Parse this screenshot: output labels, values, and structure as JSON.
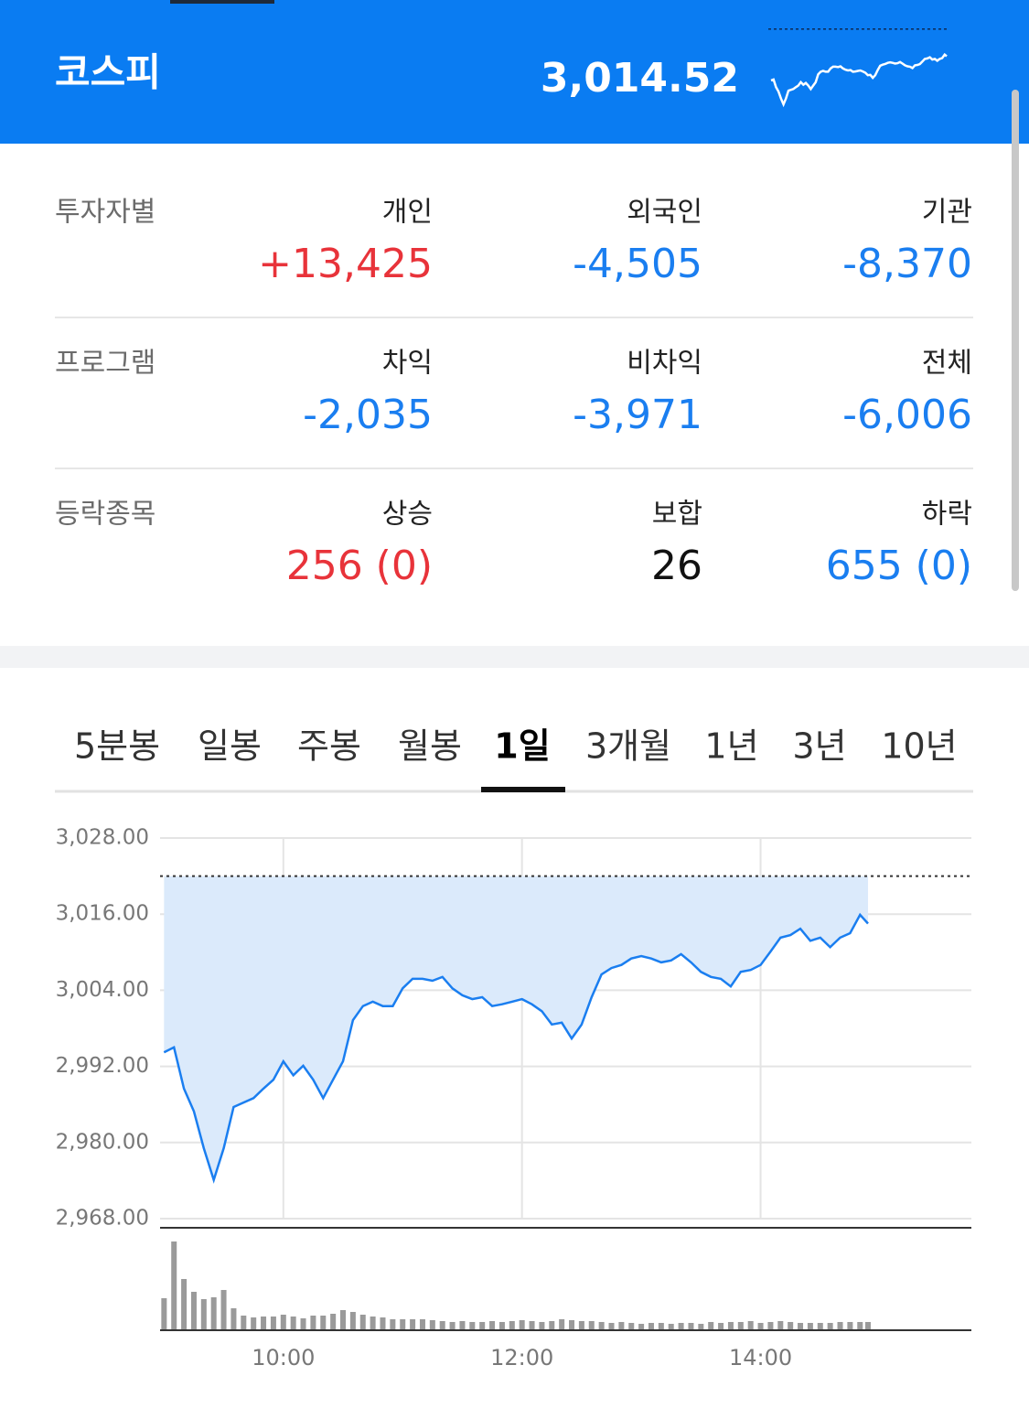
{
  "header": {
    "title": "코스피",
    "value": "3,014.52"
  },
  "investors": {
    "rows": [
      {
        "label": "투자자별",
        "cells": [
          {
            "label": "개인",
            "value": "+13,425",
            "color": "#e8333a"
          },
          {
            "label": "외국인",
            "value": "-4,505",
            "color": "#1a7ef0"
          },
          {
            "label": "기관",
            "value": "-8,370",
            "color": "#1a7ef0"
          }
        ]
      },
      {
        "label": "프로그램",
        "cells": [
          {
            "label": "차익",
            "value": "-2,035",
            "color": "#1a7ef0"
          },
          {
            "label": "비차익",
            "value": "-3,971",
            "color": "#1a7ef0"
          },
          {
            "label": "전체",
            "value": "-6,006",
            "color": "#1a7ef0"
          }
        ]
      },
      {
        "label": "등락종목",
        "cells": [
          {
            "label": "상승",
            "value": "256 (0)",
            "color": "#e8333a"
          },
          {
            "label": "보합",
            "value": "26",
            "color": "#111111"
          },
          {
            "label": "하락",
            "value": "655 (0)",
            "color": "#1a7ef0"
          }
        ]
      }
    ]
  },
  "tabs": {
    "items": [
      "5분봉",
      "일봉",
      "주봉",
      "월봉",
      "1일",
      "3개월",
      "1년",
      "3년",
      "10년"
    ],
    "selected": 4
  },
  "chart_data": {
    "type": "line",
    "x": [
      540,
      545,
      550,
      555,
      560,
      565,
      570,
      575,
      580,
      585,
      590,
      595,
      600,
      605,
      610,
      615,
      620,
      625,
      630,
      635,
      640,
      645,
      650,
      655,
      660,
      665,
      670,
      675,
      680,
      685,
      690,
      695,
      700,
      705,
      710,
      715,
      720,
      725,
      730,
      735,
      740,
      745,
      750,
      755,
      760,
      765,
      770,
      775,
      780,
      785,
      790,
      795,
      800,
      805,
      810,
      815,
      820,
      825,
      830,
      835,
      840,
      845,
      850,
      855,
      860,
      865,
      870,
      875,
      880,
      885,
      890,
      894
    ],
    "values": [
      2994.2,
      2995,
      2988.5,
      2984.9,
      2979.1,
      2974.1,
      2979.1,
      2985.6,
      2986.3,
      2987,
      2988.5,
      2989.9,
      2992.8,
      2990.6,
      2992.1,
      2989.9,
      2987,
      2989.9,
      2992.8,
      2999.3,
      3001.5,
      3002.2,
      3001.5,
      3001.5,
      3004.3,
      3005.8,
      3005.8,
      3005.5,
      3006.1,
      3004.3,
      3003.2,
      3002.6,
      3002.9,
      3001.5,
      3001.8,
      3002.2,
      3002.6,
      3001.8,
      3000.7,
      2998.6,
      2998.9,
      2996.4,
      2998.6,
      3002.9,
      3006.5,
      3007.5,
      3008,
      3009,
      3009.4,
      3009,
      3008.4,
      3008.7,
      3009.7,
      3008.4,
      3006.9,
      3006.1,
      3005.8,
      3004.6,
      3006.9,
      3007.2,
      3008,
      3010.1,
      3012.3,
      3012.7,
      3013.7,
      3011.8,
      3012.3,
      3010.8,
      3012.3,
      3013,
      3015.9,
      3014.52
    ],
    "color": "#1a7ef0",
    "fill": "#dbeafb",
    "reference_line": 3022,
    "xlim": [
      538,
      946
    ],
    "xticks": [
      {
        "value": 600,
        "label": "10:00"
      },
      {
        "value": 720,
        "label": "12:00"
      },
      {
        "value": 840,
        "label": "14:00"
      }
    ],
    "ylim": [
      2968,
      3028
    ],
    "yticks": [
      {
        "value": 2968,
        "label": "2,968.00"
      },
      {
        "value": 2980,
        "label": "2,980.00"
      },
      {
        "value": 2992,
        "label": "2,992.00"
      },
      {
        "value": 3004,
        "label": "3,004.00"
      },
      {
        "value": 3016,
        "label": "3,016.00"
      },
      {
        "value": 3028,
        "label": "3,028.00"
      }
    ],
    "grid": true,
    "volume": {
      "values": [
        35,
        97,
        56,
        42,
        34,
        36,
        44,
        24,
        16,
        14,
        15,
        15,
        17,
        15,
        13,
        16,
        16,
        18,
        22,
        20,
        17,
        15,
        14,
        12,
        12,
        12,
        12,
        11,
        10,
        9,
        10,
        9,
        9,
        10,
        9,
        10,
        11,
        10,
        9,
        10,
        12,
        11,
        10,
        10,
        9,
        8,
        9,
        8,
        7,
        8,
        8,
        7,
        8,
        8,
        7,
        9,
        8,
        9,
        9,
        10,
        8,
        9,
        10,
        9,
        8,
        8,
        8,
        8,
        9,
        9,
        9,
        9
      ],
      "color": "#9a9a9a",
      "ylim": [
        0,
        100
      ]
    }
  }
}
